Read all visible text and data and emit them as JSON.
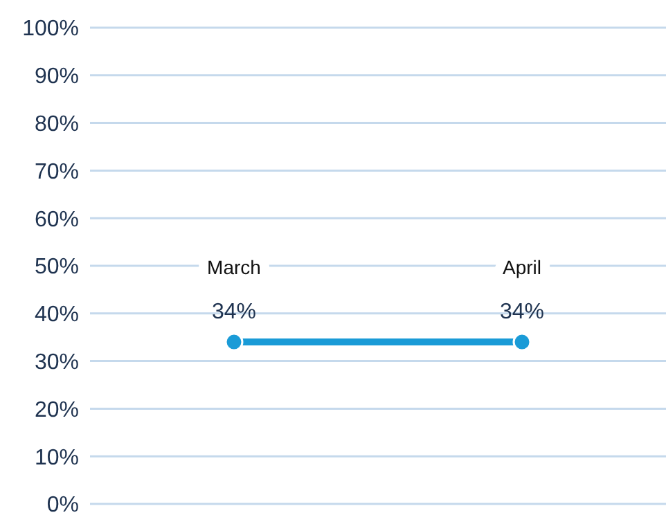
{
  "chart_data": {
    "type": "line",
    "categories": [
      "March",
      "April"
    ],
    "series": [
      {
        "color": "#1a9bd7",
        "values": [
          34,
          34
        ],
        "value_labels": [
          "34%",
          "34%"
        ]
      }
    ],
    "ylim": [
      0,
      100
    ],
    "yticks": [
      {
        "value": 0,
        "label": "0%"
      },
      {
        "value": 10,
        "label": "10%"
      },
      {
        "value": 20,
        "label": "20%"
      },
      {
        "value": 30,
        "label": "30%"
      },
      {
        "value": 40,
        "label": "40%"
      },
      {
        "value": 50,
        "label": "50%"
      },
      {
        "value": 60,
        "label": "60%"
      },
      {
        "value": 70,
        "label": "70%"
      },
      {
        "value": 80,
        "label": "80%"
      },
      {
        "value": 90,
        "label": "90%"
      },
      {
        "value": 100,
        "label": "100%"
      }
    ],
    "grid": "y",
    "legend": false,
    "marker": "circle",
    "line_style": "solid"
  }
}
